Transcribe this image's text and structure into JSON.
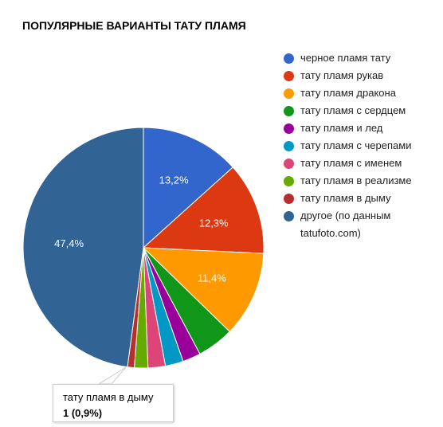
{
  "chart_data": {
    "type": "pie",
    "title": "ПОПУЛЯРНЫЕ ВАРИАНТЫ ТАТУ ПЛАМЯ",
    "slices": [
      {
        "label": "черное пламя тату",
        "value": 13.2,
        "value_label": "13,2%",
        "color": "#3366cc"
      },
      {
        "label": "тату пламя рукав",
        "value": 12.3,
        "value_label": "12,3%",
        "color": "#dc3912"
      },
      {
        "label": "тату пламя дракона",
        "value": 11.4,
        "value_label": "11,4%",
        "color": "#ff9900"
      },
      {
        "label": "тату пламя с сердцем",
        "value": 4.9,
        "value_label": "",
        "color": "#109618"
      },
      {
        "label": "тату пламя и лед",
        "value": 2.4,
        "value_label": "",
        "color": "#990099"
      },
      {
        "label": "тату пламя с черепами",
        "value": 2.4,
        "value_label": "",
        "color": "#0099c6"
      },
      {
        "label": "тату пламя с именем",
        "value": 2.3,
        "value_label": "",
        "color": "#dd4477"
      },
      {
        "label": "тату пламя в реализме",
        "value": 1.8,
        "value_label": "",
        "color": "#66aa00"
      },
      {
        "label": "тату пламя в дыму",
        "value": 0.9,
        "value_label": "",
        "color": "#b82e2e"
      },
      {
        "label": "другое (по данным tatufoto.com)",
        "value": 47.4,
        "value_label": "47,4%",
        "color": "#316395"
      }
    ],
    "legend_position": "right"
  },
  "legend": {
    "items": [
      {
        "label": "черное пламя тату",
        "color": "#3366cc"
      },
      {
        "label": "тату пламя рукав",
        "color": "#dc3912"
      },
      {
        "label": "тату пламя дракона",
        "color": "#ff9900"
      },
      {
        "label": "тату пламя с сердцем",
        "color": "#109618"
      },
      {
        "label": "тату пламя и лед",
        "color": "#990099"
      },
      {
        "label": "тату пламя с черепами",
        "color": "#0099c6"
      },
      {
        "label": "тату пламя с именем",
        "color": "#dd4477"
      },
      {
        "label": "тату пламя в реализме",
        "color": "#66aa00"
      },
      {
        "label": "тату пламя в дыму",
        "color": "#b82e2e"
      },
      {
        "label": "другое (по данным tatufoto.com)",
        "color": "#316395"
      }
    ]
  },
  "tooltip": {
    "label": "тату пламя в дыму",
    "value": "1 (0,9%)"
  }
}
